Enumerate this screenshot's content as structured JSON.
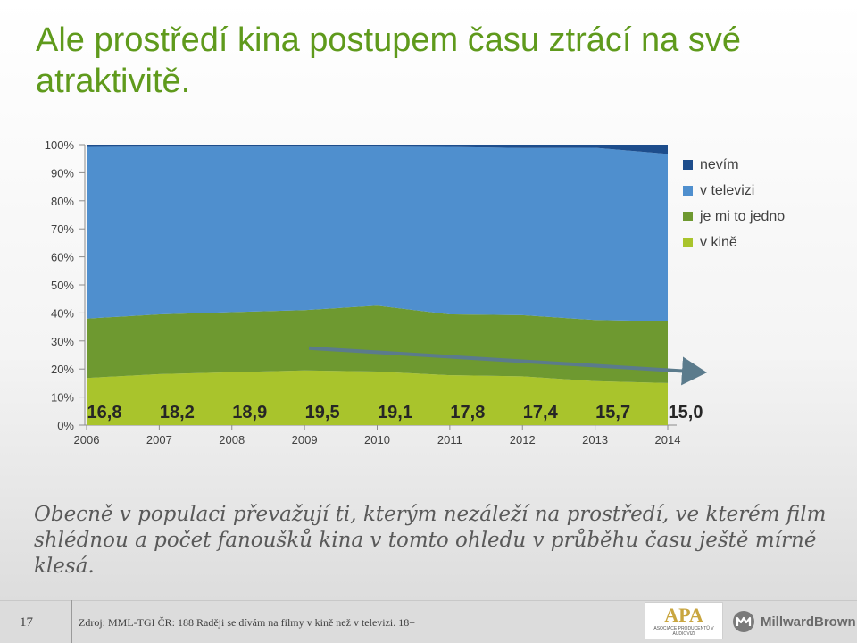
{
  "slide": {
    "title": "Ale prostředí kina postupem času ztrácí na své atraktivitě.",
    "note": "Obecně v populaci převažují ti, kterým nezáleží na prostředí, ve kterém film shlédnou a počet fanoušků kina v tomto ohledu v průběhu času ještě mírně klesá.",
    "page_number": "17",
    "source": "Zdroj: MML-TGI ČR: 188 Raději se dívám na filmy v kině než v televizi. 18+",
    "logos": {
      "apa_mark": "APA",
      "apa_subtitle": "ASOCIACE PRODUCENTŮ V AUDIOVIZI",
      "millwardbrown": "MillwardBrown"
    }
  },
  "chart_data": {
    "type": "area",
    "stacked": true,
    "normalized_percent": true,
    "categories": [
      "2006",
      "2007",
      "2008",
      "2009",
      "2010",
      "2011",
      "2012",
      "2013",
      "2014"
    ],
    "y_ticks": [
      "0%",
      "10%",
      "20%",
      "30%",
      "40%",
      "50%",
      "60%",
      "70%",
      "80%",
      "90%",
      "100%"
    ],
    "ylim": [
      0,
      100
    ],
    "series": [
      {
        "name": "v kině",
        "color": "#a9c42c",
        "values": [
          16.8,
          18.2,
          18.9,
          19.5,
          19.1,
          17.8,
          17.4,
          15.7,
          15.0
        ]
      },
      {
        "name": "je mi to jedno",
        "color": "#6e9930",
        "values": [
          21.2,
          21.3,
          21.4,
          21.5,
          23.5,
          21.7,
          21.8,
          21.8,
          22.0
        ]
      },
      {
        "name": "v televizi",
        "color": "#4f8fce",
        "values": [
          61.2,
          59.8,
          59.0,
          58.3,
          56.7,
          59.7,
          59.6,
          61.4,
          59.7
        ]
      },
      {
        "name": "nevím",
        "color": "#1d4d8c",
        "values": [
          0.8,
          0.7,
          0.7,
          0.7,
          0.7,
          0.8,
          1.2,
          1.1,
          3.3
        ]
      }
    ],
    "data_labels": [
      "16,8",
      "18,2",
      "18,9",
      "19,5",
      "19,1",
      "17,8",
      "17,4",
      "15,7",
      "15,0"
    ],
    "legend": {
      "position": "right",
      "order": [
        "nevím",
        "v televizi",
        "je mi to jedno",
        "v kině"
      ]
    },
    "trend_arrow": {
      "color": "#5b7b8c",
      "from": {
        "x": "2009",
        "y": 19.5
      },
      "to": {
        "x": "2014",
        "y": 15.0
      }
    }
  }
}
